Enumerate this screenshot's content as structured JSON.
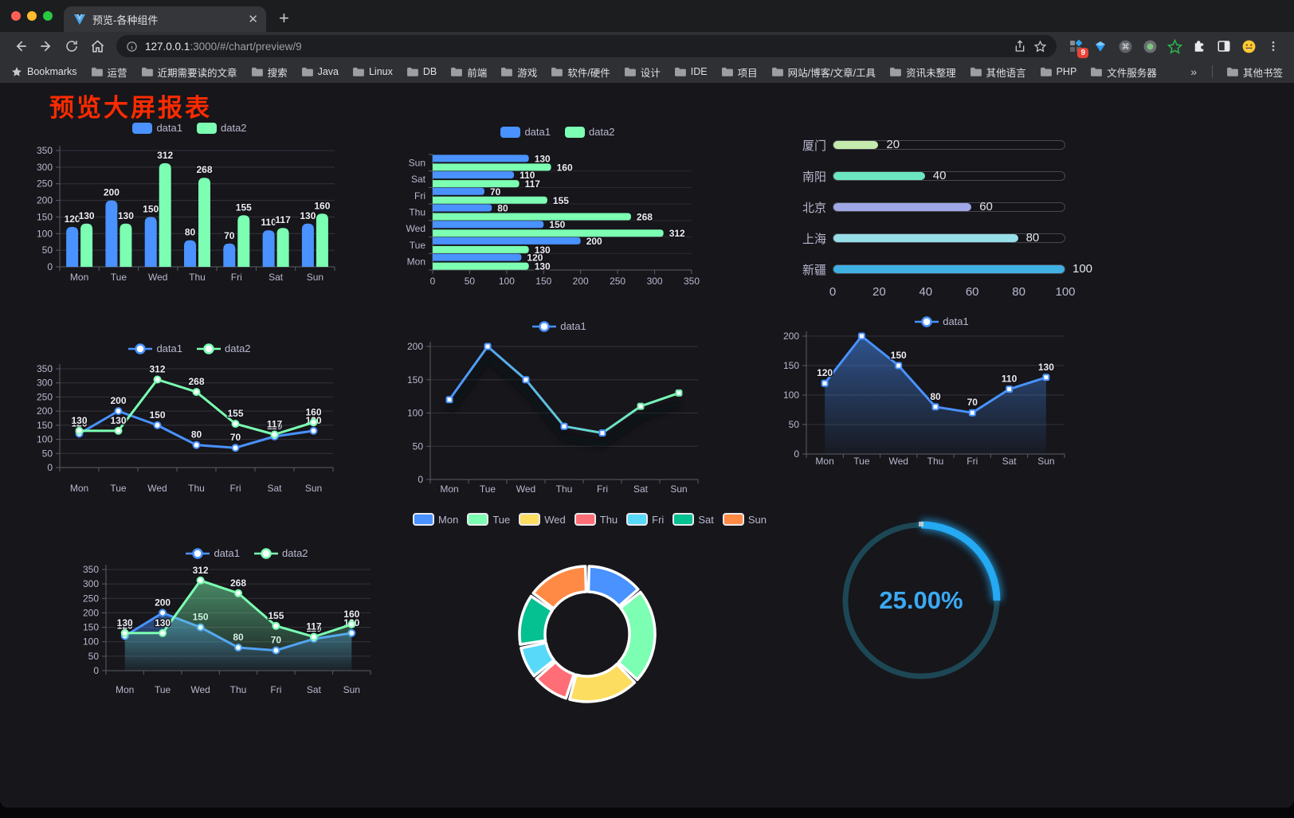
{
  "browser": {
    "tab_title": "预览-各种组件",
    "url_host": "127.0.0.1",
    "url_rest": ":3000/#/chart/preview/9",
    "extension_badge": "9",
    "bookmarks": [
      "Bookmarks",
      "运营",
      "近期需要读的文章",
      "搜索",
      "Java",
      "Linux",
      "DB",
      "前端",
      "游戏",
      "软件/硬件",
      "设计",
      "IDE",
      "项目",
      "网站/博客/文章/工具",
      "资讯未整理",
      "其他语言",
      "PHP",
      "文件服务器",
      "»",
      "其他书签"
    ]
  },
  "page": {
    "title": "预览大屏报表",
    "title_color": "#ff2b00",
    "background": "#16161b"
  },
  "colors": {
    "series_blue": "#4992ff",
    "series_green": "#7cffb2",
    "axis_text": "#b9b8ce",
    "gauge_blue": "#24a9f2"
  },
  "chart_data": [
    {
      "id": "bar-vertical",
      "type": "bar",
      "categories": [
        "Mon",
        "Tue",
        "Wed",
        "Thu",
        "Fri",
        "Sat",
        "Sun"
      ],
      "series": [
        {
          "name": "data1",
          "color": "#4992ff",
          "values": [
            120,
            200,
            150,
            80,
            70,
            110,
            130
          ]
        },
        {
          "name": "data2",
          "color": "#7cffb2",
          "values": [
            130,
            130,
            312,
            268,
            155,
            117,
            160
          ]
        }
      ],
      "ylim": [
        0,
        350
      ],
      "yticks": [
        0,
        50,
        100,
        150,
        200,
        250,
        300,
        350
      ],
      "labels": true,
      "grid": true,
      "legend_position": "top"
    },
    {
      "id": "bar-horizontal",
      "type": "bar-horizontal",
      "categories": [
        "Mon",
        "Tue",
        "Wed",
        "Thu",
        "Fri",
        "Sat",
        "Sun"
      ],
      "series": [
        {
          "name": "data1",
          "color": "#4992ff",
          "values": [
            120,
            200,
            150,
            80,
            70,
            110,
            130
          ]
        },
        {
          "name": "data2",
          "color": "#7cffb2",
          "values": [
            130,
            130,
            312,
            268,
            155,
            117,
            160
          ]
        }
      ],
      "xlim": [
        0,
        350
      ],
      "xticks": [
        0,
        50,
        100,
        150,
        200,
        250,
        300,
        350
      ],
      "labels": true,
      "grid": true,
      "legend_position": "top"
    },
    {
      "id": "progress-bars",
      "type": "bar-horizontal-progress",
      "categories": [
        "厦门",
        "南阳",
        "北京",
        "上海",
        "新疆"
      ],
      "values": [
        20,
        40,
        60,
        80,
        100
      ],
      "colors": [
        "#c4ebad",
        "#6be6c1",
        "#a0a7e6",
        "#96dee8",
        "#3fb1e3"
      ],
      "xlim": [
        0,
        100
      ],
      "xticks": [
        0,
        20,
        40,
        60,
        80,
        100
      ],
      "labels": true
    },
    {
      "id": "line-two-series",
      "type": "line",
      "categories": [
        "Mon",
        "Tue",
        "Wed",
        "Thu",
        "Fri",
        "Sat",
        "Sun"
      ],
      "series": [
        {
          "name": "data1",
          "color": "#4992ff",
          "values": [
            120,
            200,
            150,
            80,
            70,
            110,
            130
          ]
        },
        {
          "name": "data2",
          "color": "#7cffb2",
          "values": [
            130,
            130,
            312,
            268,
            155,
            117,
            160
          ]
        }
      ],
      "ylim": [
        0,
        350
      ],
      "yticks": [
        0,
        50,
        100,
        150,
        200,
        250,
        300,
        350
      ],
      "labels": true,
      "grid": true,
      "legend_position": "top"
    },
    {
      "id": "line-gradient",
      "type": "line",
      "categories": [
        "Mon",
        "Tue",
        "Wed",
        "Thu",
        "Fri",
        "Sat",
        "Sun"
      ],
      "series": [
        {
          "name": "data1",
          "color_start": "#4992ff",
          "color_end": "#7cffb2",
          "values": [
            120,
            200,
            150,
            80,
            70,
            110,
            130
          ]
        }
      ],
      "ylim": [
        0,
        200
      ],
      "yticks": [
        0,
        50,
        100,
        150,
        200
      ],
      "labels": false,
      "grid": true,
      "legend_position": "top"
    },
    {
      "id": "area-single",
      "type": "area",
      "categories": [
        "Mon",
        "Tue",
        "Wed",
        "Thu",
        "Fri",
        "Sat",
        "Sun"
      ],
      "series": [
        {
          "name": "data1",
          "color": "#4992ff",
          "values": [
            120,
            200,
            150,
            80,
            70,
            110,
            130
          ],
          "area": true
        }
      ],
      "ylim": [
        0,
        200
      ],
      "yticks": [
        0,
        50,
        100,
        150,
        200
      ],
      "labels": true,
      "grid": true,
      "legend_position": "top"
    },
    {
      "id": "line-two-series-area",
      "type": "area",
      "categories": [
        "Mon",
        "Tue",
        "Wed",
        "Thu",
        "Fri",
        "Sat",
        "Sun"
      ],
      "series": [
        {
          "name": "data1",
          "color": "#4992ff",
          "values": [
            120,
            200,
            150,
            80,
            70,
            110,
            130
          ],
          "area": true
        },
        {
          "name": "data2",
          "color": "#7cffb2",
          "values": [
            130,
            130,
            312,
            268,
            155,
            117,
            160
          ],
          "area": true
        }
      ],
      "ylim": [
        0,
        350
      ],
      "yticks": [
        0,
        50,
        100,
        150,
        200,
        250,
        300,
        350
      ],
      "labels": true,
      "grid": true,
      "legend_position": "top"
    },
    {
      "id": "donut",
      "type": "pie",
      "categories": [
        "Mon",
        "Tue",
        "Wed",
        "Thu",
        "Fri",
        "Sat",
        "Sun"
      ],
      "values": [
        120,
        200,
        150,
        80,
        70,
        110,
        130
      ],
      "colors": [
        "#4992ff",
        "#7cffb2",
        "#fddd60",
        "#ff6e76",
        "#58d9f9",
        "#05c091",
        "#ff8a45"
      ],
      "legend_position": "top",
      "inner_radius_ratio": 0.62
    },
    {
      "id": "gauge",
      "type": "gauge",
      "value": 25,
      "label": "25.00%",
      "color": "#24a9f2",
      "track_color": "#1d4754"
    }
  ]
}
